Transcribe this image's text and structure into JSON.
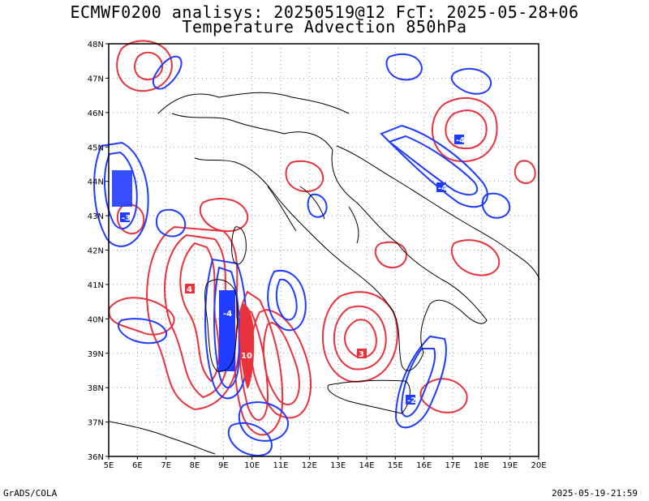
{
  "title_line1": "ECMWF0200 analisys: 20250519@12 FcT: 2025-05-28+06",
  "title_line2": "Temperature Advection 850hPa",
  "footer_left": "GrADS/COLA",
  "footer_right": "2025-05-19-21:59",
  "lat_labels": [
    "48N",
    "47N",
    "46N",
    "45N",
    "44N",
    "43N",
    "42N",
    "41N",
    "40N",
    "39N",
    "38N",
    "37N",
    "36N"
  ],
  "lon_labels": [
    "5E",
    "6E",
    "7E",
    "8E",
    "9E",
    "10E",
    "11E",
    "12E",
    "13E",
    "14E",
    "15E",
    "16E",
    "17E",
    "18E",
    "19E",
    "20E"
  ],
  "colors": {
    "positive_contour": "#e8323c",
    "negative_contour": "#1f3cff",
    "coastline": "#000000",
    "grid": "#9a9a9a"
  }
}
